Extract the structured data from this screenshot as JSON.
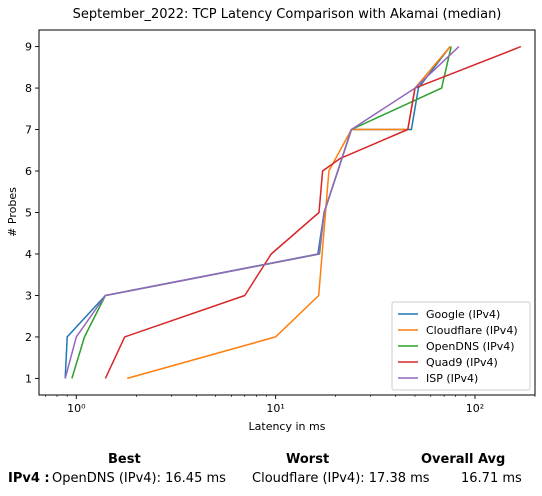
{
  "chart_data": {
    "type": "line",
    "title": "September_2022: TCP Latency Comparison with Akamai (median)",
    "xlabel": "Latency in ms",
    "ylabel": "# Probes",
    "xscale": "log",
    "xlim": [
      0.65,
      200
    ],
    "ylim": [
      0.6,
      9.4
    ],
    "x_ticks": [
      1,
      10,
      100
    ],
    "x_tick_labels": [
      "10⁰",
      "10¹",
      "10²"
    ],
    "y_ticks": [
      1,
      2,
      3,
      4,
      5,
      6,
      7,
      8,
      9
    ],
    "grid": false,
    "legend_position": "lower-right",
    "series": [
      {
        "name": "Google (IPv4)",
        "color": "#1f77b4",
        "x": [
          0.88,
          0.9,
          1.4,
          16.3,
          17.5,
          20.5,
          24,
          48,
          52,
          75
        ],
        "y": [
          1,
          2,
          3,
          4,
          5,
          6,
          7,
          7,
          8,
          9
        ]
      },
      {
        "name": "Cloudflare (IPv4)",
        "color": "#ff7f0e",
        "x": [
          1.8,
          10,
          16.45,
          18.5,
          24,
          46,
          50,
          75
        ],
        "y": [
          1,
          2,
          3,
          6,
          7,
          7,
          8,
          9
        ]
      },
      {
        "name": "OpenDNS (IPv4)",
        "color": "#2ca02c",
        "x": [
          0.95,
          1.1,
          1.4,
          16.6,
          17.5,
          20.5,
          24,
          68,
          76
        ],
        "y": [
          1,
          2,
          3,
          4,
          5,
          6,
          7,
          8,
          9
        ]
      },
      {
        "name": "Quad9 (IPv4)",
        "color": "#d62728",
        "x": [
          1.4,
          1.75,
          7.0,
          9.5,
          16.5,
          17.2,
          21,
          46,
          50,
          170
        ],
        "y": [
          1,
          2,
          3,
          4,
          5,
          6,
          6.3,
          7,
          8,
          9
        ]
      },
      {
        "name": "ISP (IPv4)",
        "color": "#9467bd",
        "x": [
          0.88,
          1.0,
          1.4,
          16.5,
          17.5,
          20.5,
          24,
          50,
          83
        ],
        "y": [
          1,
          2,
          3,
          4,
          5,
          6,
          7,
          8,
          9
        ]
      }
    ]
  },
  "summary": {
    "best_header": "Best",
    "worst_header": "Worst",
    "avg_header": "Overall Avg",
    "row_label": "IPv4 :",
    "best_value": "OpenDNS (IPv4): 16.45 ms",
    "worst_value": "Cloudflare (IPv4): 17.38 ms",
    "avg_value": "16.71 ms"
  }
}
